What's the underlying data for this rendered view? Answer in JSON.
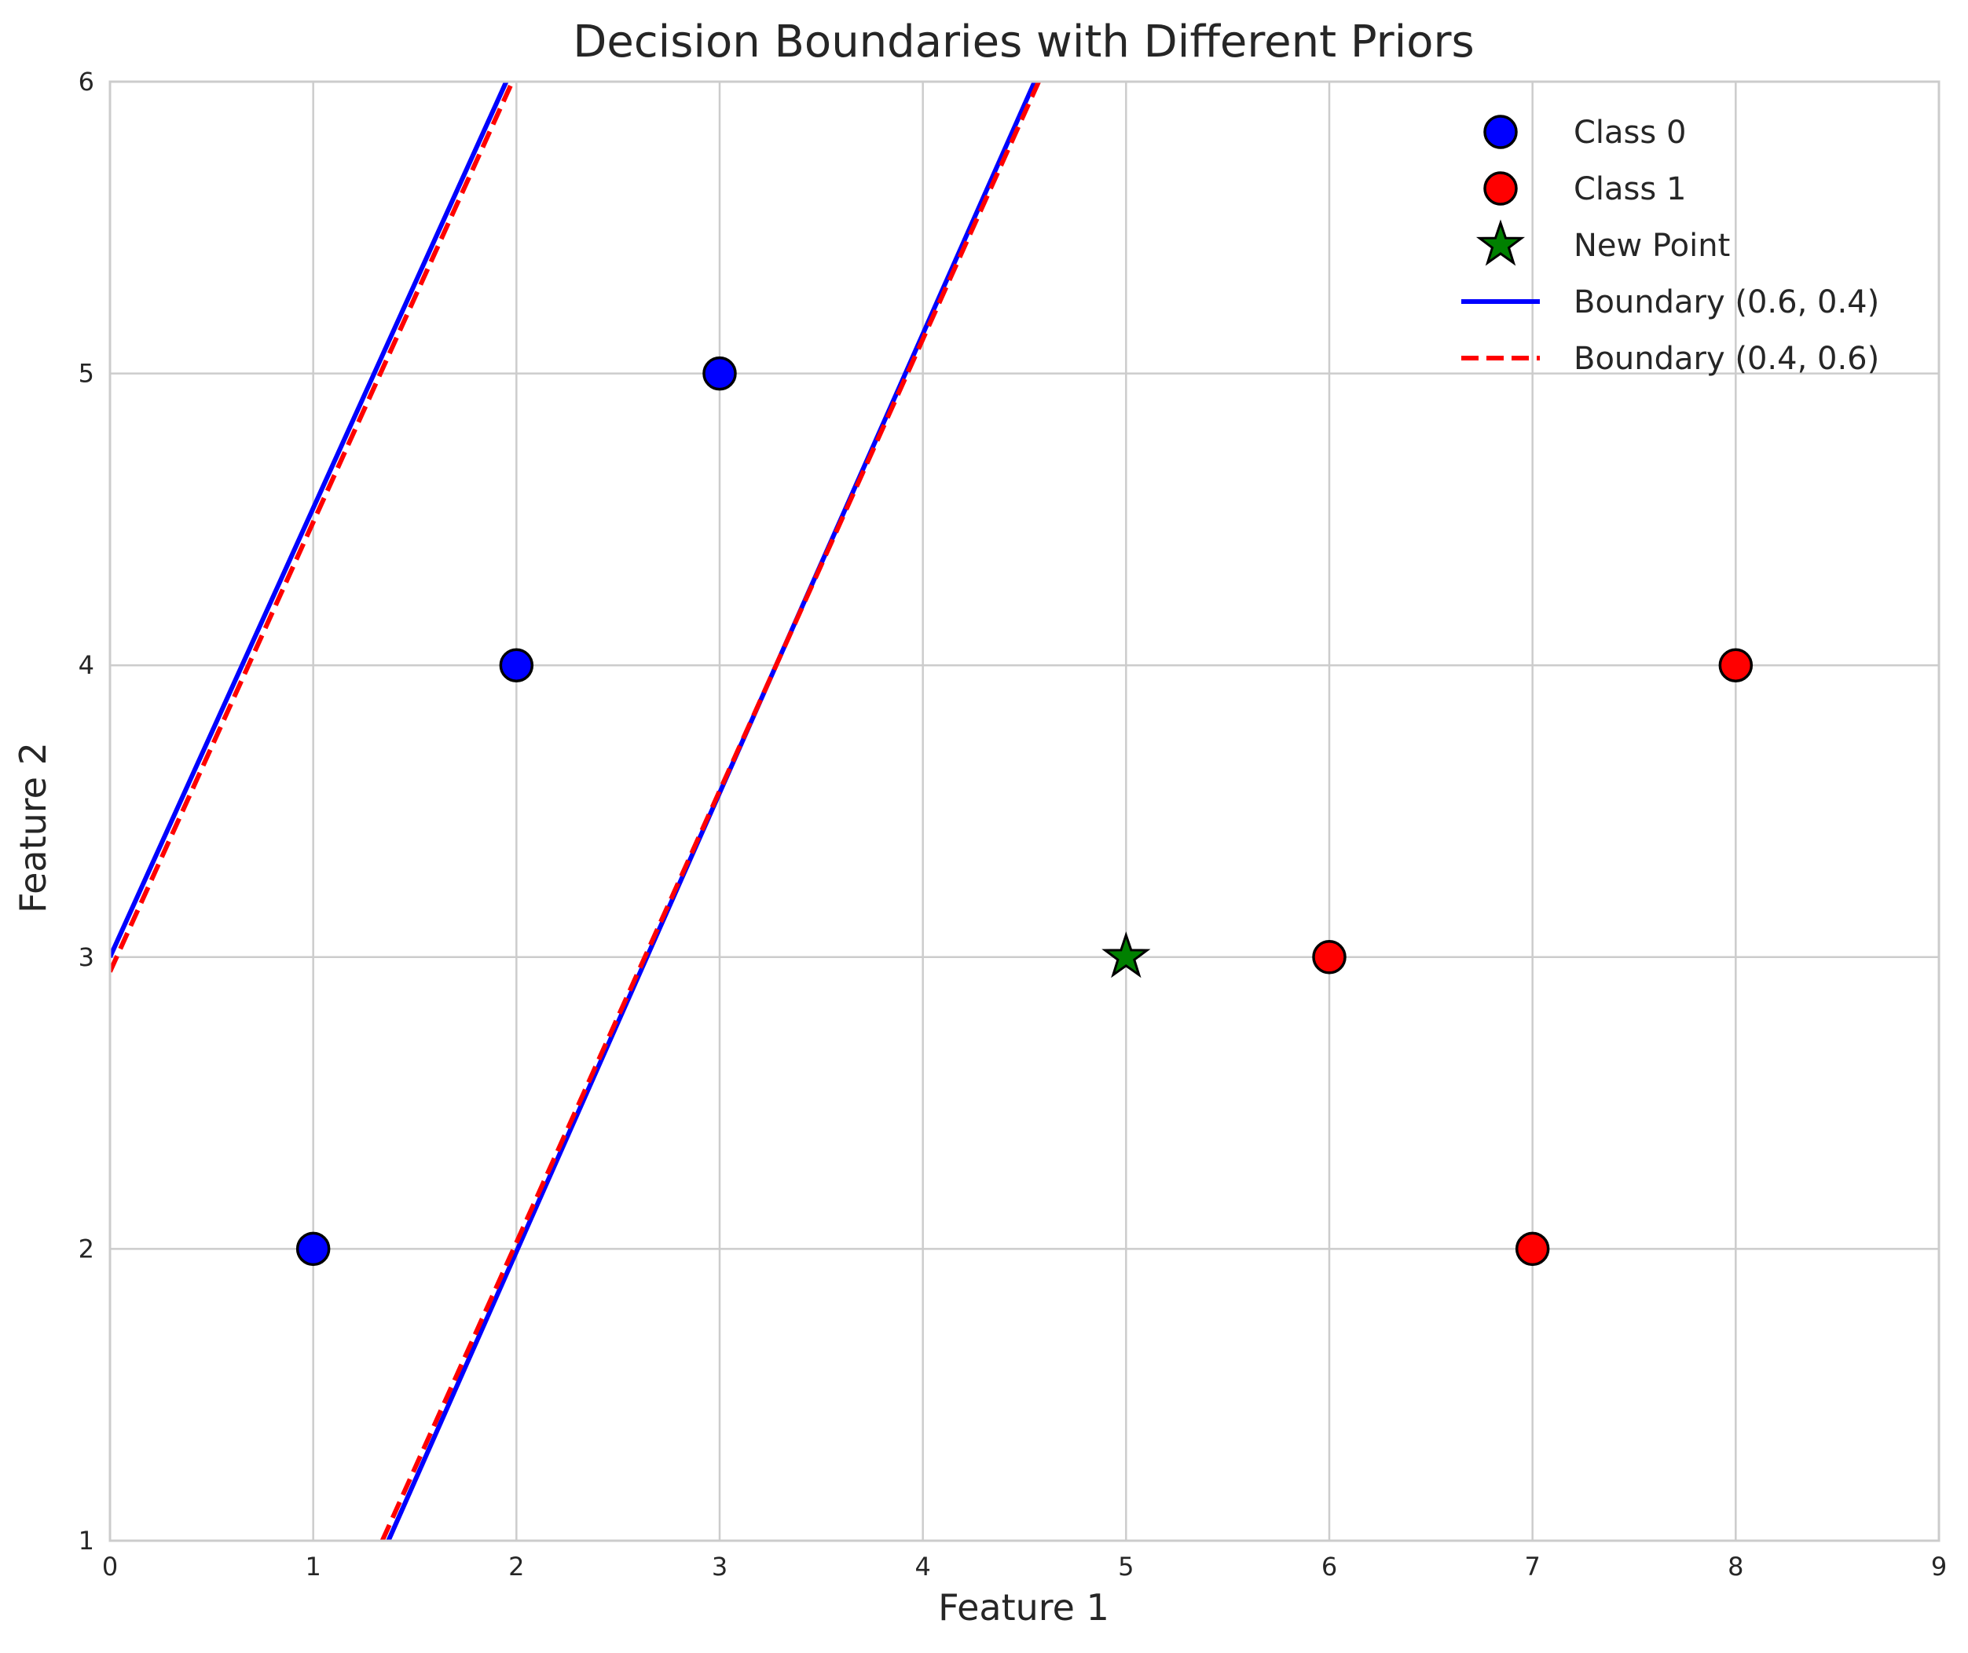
{
  "chart_data": {
    "type": "scatter",
    "title": "Decision Boundaries with Different Priors",
    "xlabel": "Feature 1",
    "ylabel": "Feature 2",
    "xlim": [
      0,
      9
    ],
    "ylim": [
      1,
      6
    ],
    "xticks": [
      0,
      1,
      2,
      3,
      4,
      5,
      6,
      7,
      8,
      9
    ],
    "yticks": [
      1,
      2,
      3,
      4,
      5,
      6
    ],
    "grid": true,
    "legend_position": "top-right",
    "series": [
      {
        "name": "Class 0",
        "kind": "points",
        "marker": "circle",
        "color": "#0000ff",
        "x": [
          1,
          2,
          3
        ],
        "y": [
          2,
          4,
          5
        ]
      },
      {
        "name": "Class 1",
        "kind": "points",
        "marker": "circle",
        "color": "#ff0000",
        "x": [
          6,
          7,
          8
        ],
        "y": [
          3,
          2,
          4
        ]
      },
      {
        "name": "New Point",
        "kind": "points",
        "marker": "star",
        "color": "#008000",
        "x": [
          5
        ],
        "y": [
          3
        ]
      },
      {
        "name": "Boundary (0.6, 0.4)",
        "kind": "lines",
        "style": "solid",
        "color": "#0000ff",
        "segments": [
          {
            "x": [
              0,
              1.95
            ],
            "y": [
              3.0,
              6.0
            ]
          },
          {
            "x": [
              1.37,
              4.55
            ],
            "y": [
              1.0,
              6.0
            ]
          }
        ]
      },
      {
        "name": "Boundary (0.4, 0.6)",
        "kind": "lines",
        "style": "dashed",
        "color": "#ff0000",
        "segments": [
          {
            "x": [
              0,
              1.98
            ],
            "y": [
              2.95,
              6.0
            ]
          },
          {
            "x": [
              1.34,
              4.57
            ],
            "y": [
              1.0,
              6.0
            ]
          }
        ]
      }
    ]
  }
}
